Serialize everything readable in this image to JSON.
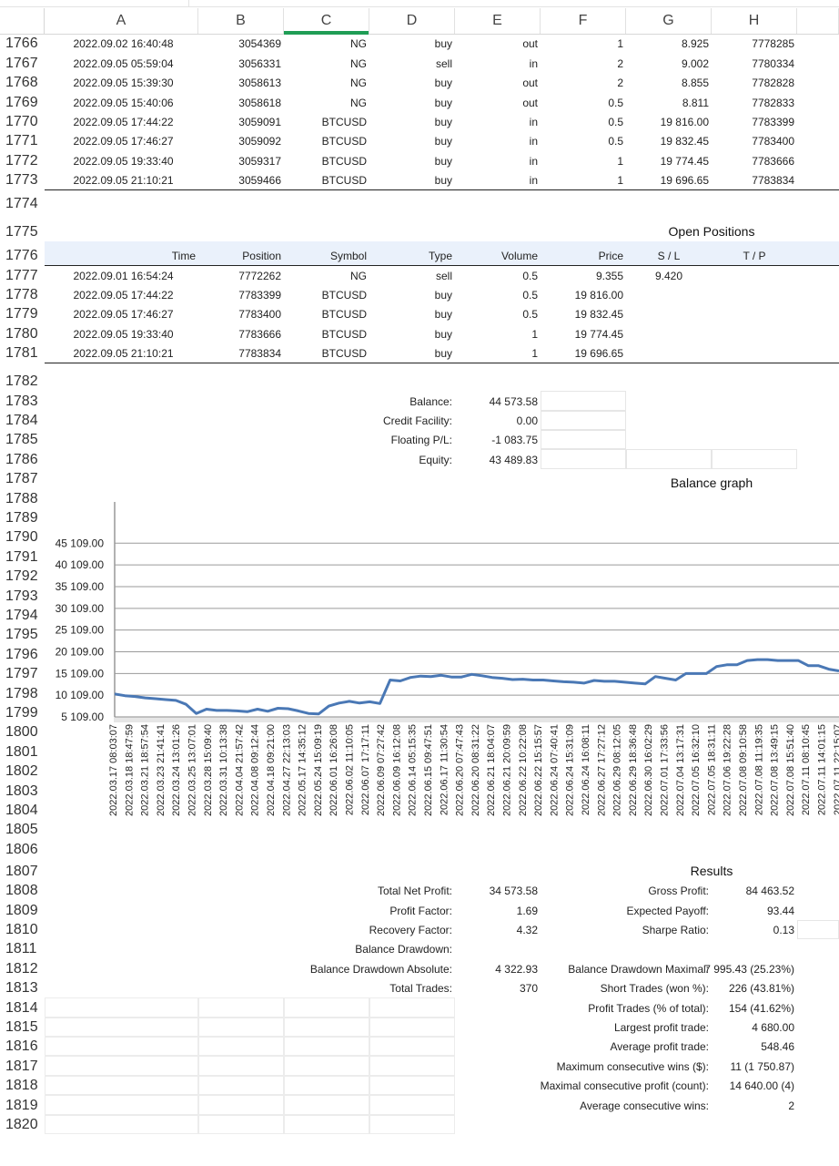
{
  "columns": [
    "A",
    "B",
    "C",
    "D",
    "E",
    "F",
    "G",
    "H"
  ],
  "selected_column": "C",
  "deals": [
    {
      "row": "1766",
      "time": "2022.09.02 16:40:48",
      "deal": "3054369",
      "symbol": "NG",
      "type": "buy",
      "dir": "out",
      "volume": "1",
      "price": "8.925",
      "order": "7778285"
    },
    {
      "row": "1767",
      "time": "2022.09.05 05:59:04",
      "deal": "3056331",
      "symbol": "NG",
      "type": "sell",
      "dir": "in",
      "volume": "2",
      "price": "9.002",
      "order": "7780334"
    },
    {
      "row": "1768",
      "time": "2022.09.05 15:39:30",
      "deal": "3058613",
      "symbol": "NG",
      "type": "buy",
      "dir": "out",
      "volume": "2",
      "price": "8.855",
      "order": "7782828"
    },
    {
      "row": "1769",
      "time": "2022.09.05 15:40:06",
      "deal": "3058618",
      "symbol": "NG",
      "type": "buy",
      "dir": "out",
      "volume": "0.5",
      "price": "8.811",
      "order": "7782833"
    },
    {
      "row": "1770",
      "time": "2022.09.05 17:44:22",
      "deal": "3059091",
      "symbol": "BTCUSD",
      "type": "buy",
      "dir": "in",
      "volume": "0.5",
      "price": "19 816.00",
      "order": "7783399"
    },
    {
      "row": "1771",
      "time": "2022.09.05 17:46:27",
      "deal": "3059092",
      "symbol": "BTCUSD",
      "type": "buy",
      "dir": "in",
      "volume": "0.5",
      "price": "19 832.45",
      "order": "7783400"
    },
    {
      "row": "1772",
      "time": "2022.09.05 19:33:40",
      "deal": "3059317",
      "symbol": "BTCUSD",
      "type": "buy",
      "dir": "in",
      "volume": "1",
      "price": "19 774.45",
      "order": "7783666"
    },
    {
      "row": "1773",
      "time": "2022.09.05 21:10:21",
      "deal": "3059466",
      "symbol": "BTCUSD",
      "type": "buy",
      "dir": "in",
      "volume": "1",
      "price": "19 696.65",
      "order": "7783834"
    }
  ],
  "open_positions": {
    "row_blank1": "1774",
    "row_title": "1775",
    "title": "Open Positions",
    "row_header": "1776",
    "headers": {
      "time": "Time",
      "position": "Position",
      "symbol": "Symbol",
      "type": "Type",
      "volume": "Volume",
      "price": "Price",
      "sl": "S / L",
      "tp": "T / P"
    },
    "rows": [
      {
        "row": "1777",
        "time": "2022.09.01 16:54:24",
        "position": "7772262",
        "symbol": "NG",
        "type": "sell",
        "volume": "0.5",
        "price": "9.355",
        "sl": "9.420",
        "tp": ""
      },
      {
        "row": "1778",
        "time": "2022.09.05 17:44:22",
        "position": "7783399",
        "symbol": "BTCUSD",
        "type": "buy",
        "volume": "0.5",
        "price": "19 816.00",
        "sl": "",
        "tp": ""
      },
      {
        "row": "1779",
        "time": "2022.09.05 17:46:27",
        "position": "7783400",
        "symbol": "BTCUSD",
        "type": "buy",
        "volume": "0.5",
        "price": "19 832.45",
        "sl": "",
        "tp": ""
      },
      {
        "row": "1780",
        "time": "2022.09.05 19:33:40",
        "position": "7783666",
        "symbol": "BTCUSD",
        "type": "buy",
        "volume": "1",
        "price": "19 774.45",
        "sl": "",
        "tp": ""
      },
      {
        "row": "1781",
        "time": "2022.09.05 21:10:21",
        "position": "7783834",
        "symbol": "BTCUSD",
        "type": "buy",
        "volume": "1",
        "price": "19 696.65",
        "sl": "",
        "tp": ""
      }
    ]
  },
  "account": {
    "row_blank": "1782",
    "items": [
      {
        "row": "1783",
        "label": "Balance:",
        "value": "44 573.58"
      },
      {
        "row": "1784",
        "label": "Credit Facility:",
        "value": "0.00"
      },
      {
        "row": "1785",
        "label": "Floating P/L:",
        "value": "-1 083.75"
      },
      {
        "row": "1786",
        "label": "Equity:",
        "value": "43 489.83"
      }
    ]
  },
  "balance_graph_rows": [
    "1787",
    "1788",
    "1789",
    "1790",
    "1791",
    "1792",
    "1793",
    "1794",
    "1795",
    "1796",
    "1797",
    "1798",
    "1799",
    "1800",
    "1801",
    "1802",
    "1803",
    "1804",
    "1805",
    "1806"
  ],
  "chart_data": {
    "type": "line",
    "title": "Balance graph",
    "y_ticks": [
      "45 109.00",
      "40 109.00",
      "35 109.00",
      "30 109.00",
      "25 109.00",
      "20 109.00",
      "15 109.00",
      "10 109.00",
      "5 109.00"
    ],
    "ylim": [
      5109,
      48109
    ],
    "grid": true,
    "x_labels": [
      "2022.03.17 08:03:07",
      "2022.03.18 18:47:59",
      "2022.03.21 18:57:54",
      "2022.03.23 21:41:41",
      "2022.03.24 13:01:26",
      "2022.03.25 13:07:01",
      "2022.03.28 15:09:40",
      "2022.03.31 10:13:38",
      "2022.04.04 21:57:42",
      "2022.04.08 09:12:44",
      "2022.04.18 09:21:00",
      "2022.04.27 22:13:03",
      "2022.05.17 14:35:12",
      "2022.05.24 15:09:19",
      "2022.06.01 16:26:08",
      "2022.06.02 11:10:05",
      "2022.06.07 17:17:11",
      "2022.06.09 07:27:42",
      "2022.06.09 16:12:08",
      "2022.06.14 05:15:35",
      "2022.06.15 09:47:51",
      "2022.06.17 11:30:54",
      "2022.06.20 07:47:43",
      "2022.06.20 08:31:22",
      "2022.06.21 18:04:07",
      "2022.06.21 20:09:59",
      "2022.06.22 10:22:08",
      "2022.06.22 15:15:57",
      "2022.06.24 07:40:41",
      "2022.06.24 15:31:09",
      "2022.06.24 16:08:11",
      "2022.06.27 17:27:12",
      "2022.06.29 08:12:05",
      "2022.06.29 18:36:48",
      "2022.06.30 16:02:29",
      "2022.07.01 17:33:56",
      "2022.07.04 13:17:31",
      "2022.07.05 16:32:10",
      "2022.07.05 18:31:11",
      "2022.07.06 19:22:28",
      "2022.07.08 09:10:58",
      "2022.07.08 11:19:35",
      "2022.07.08 13:49:15",
      "2022.07.08 15:51:40",
      "2022.07.11 08:10:45",
      "2022.07.11 14:01:15",
      "2022.07.11 22:15:07"
    ],
    "values": [
      10400,
      10000,
      9800,
      9500,
      9300,
      9100,
      8900,
      8000,
      5900,
      6900,
      6600,
      6600,
      6500,
      6300,
      6900,
      6400,
      7100,
      7000,
      6500,
      5900,
      5800,
      7600,
      8300,
      8700,
      8300,
      8600,
      8200,
      13600,
      13400,
      14200,
      14500,
      14400,
      14700,
      14300,
      14300,
      14900,
      14600,
      14200,
      14000,
      13700,
      13800,
      13600,
      13600,
      13400,
      13200,
      13100,
      12900,
      13500,
      13300,
      13300,
      13100,
      12900,
      12700,
      14400,
      14000,
      13600,
      15100,
      15100,
      15100,
      16700,
      17100,
      17100,
      18100,
      18300,
      18300,
      18100,
      18100,
      18100,
      16900,
      16900,
      16100,
      15700
    ]
  },
  "results": {
    "row_title": "1807",
    "title": "Results",
    "rows": [
      {
        "row": "1808",
        "l1": "Total Net Profit:",
        "v1": "34 573.58",
        "l2": "Gross Profit:",
        "v2": "84 463.52"
      },
      {
        "row": "1809",
        "l1": "Profit Factor:",
        "v1": "1.69",
        "l2": "Expected Payoff:",
        "v2": "93.44"
      },
      {
        "row": "1810",
        "l1": "Recovery Factor:",
        "v1": "4.32",
        "l2": "Sharpe Ratio:",
        "v2": "0.13"
      },
      {
        "row": "1811",
        "l1": "Balance Drawdown:",
        "v1": "",
        "l2": "",
        "v2": ""
      },
      {
        "row": "1812",
        "l1": "Balance Drawdown Absolute:",
        "v1": "4 322.93",
        "l2": "Balance Drawdown Maximal:",
        "v2": "7 995.43 (25.23%)"
      },
      {
        "row": "1813",
        "l1": "Total Trades:",
        "v1": "370",
        "l2": "Short Trades (won %):",
        "v2": "226 (43.81%)"
      },
      {
        "row": "1814",
        "l1": "",
        "v1": "",
        "l2": "Profit Trades (% of total):",
        "v2": "154 (41.62%)"
      },
      {
        "row": "1815",
        "l1": "",
        "v1": "",
        "l2": "Largest profit trade:",
        "v2": "4 680.00"
      },
      {
        "row": "1816",
        "l1": "",
        "v1": "",
        "l2": "Average profit trade:",
        "v2": "548.46"
      },
      {
        "row": "1817",
        "l1": "",
        "v1": "",
        "l2": "Maximum consecutive wins ($):",
        "v2": "11 (1 750.87)"
      },
      {
        "row": "1818",
        "l1": "",
        "v1": "",
        "l2": "Maximal consecutive profit (count):",
        "v2": "14 640.00 (4)"
      },
      {
        "row": "1819",
        "l1": "",
        "v1": "",
        "l2": "Average consecutive wins:",
        "v2": "2"
      },
      {
        "row": "1820",
        "l1": "",
        "v1": "",
        "l2": "",
        "v2": ""
      }
    ]
  },
  "colors": {
    "accent": "#1f9d55",
    "header_band": "#eaf1fb",
    "line": "#4a78b5"
  }
}
